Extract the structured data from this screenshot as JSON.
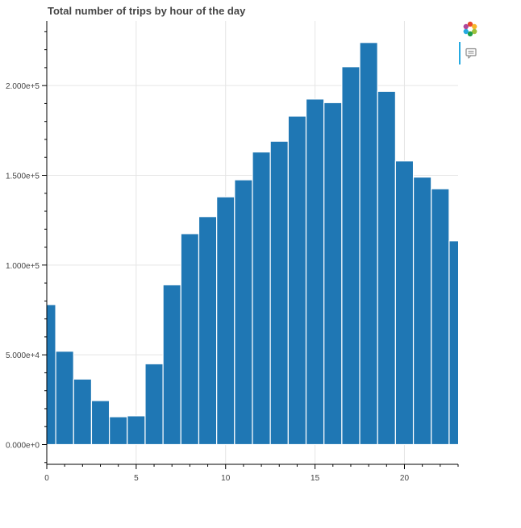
{
  "chart_data": {
    "type": "bar",
    "title": "Total number of trips by hour of the day",
    "xlabel": "",
    "ylabel": "",
    "x": [
      0,
      1,
      2,
      3,
      4,
      5,
      6,
      7,
      8,
      9,
      10,
      11,
      12,
      13,
      14,
      15,
      16,
      17,
      18,
      19,
      20,
      21,
      22,
      23
    ],
    "values": [
      78000,
      52000,
      36500,
      24500,
      15500,
      16000,
      45000,
      89000,
      117500,
      127000,
      138000,
      147500,
      163000,
      169000,
      183000,
      192500,
      190500,
      210500,
      224000,
      196800,
      158000,
      149000,
      142500,
      113500
    ],
    "xlim": [
      0,
      23
    ],
    "ylim": [
      -11000,
      236000
    ],
    "x_ticks": [
      0,
      5,
      10,
      15,
      20
    ],
    "x_tick_labels": [
      "0",
      "5",
      "10",
      "15",
      "20"
    ],
    "y_ticks": [
      0,
      50000,
      100000,
      150000,
      200000
    ],
    "y_tick_labels": [
      "0.000e+0",
      "5.000e+4",
      "1.000e+5",
      "1.500e+5",
      "2.000e+5"
    ],
    "grid": true,
    "bar_color": "#1f77b4"
  },
  "toolbar": {
    "logo_icon": "bokeh-logo-icon",
    "hover_icon": "hover-tool-icon",
    "active_color": "#26aae1"
  }
}
